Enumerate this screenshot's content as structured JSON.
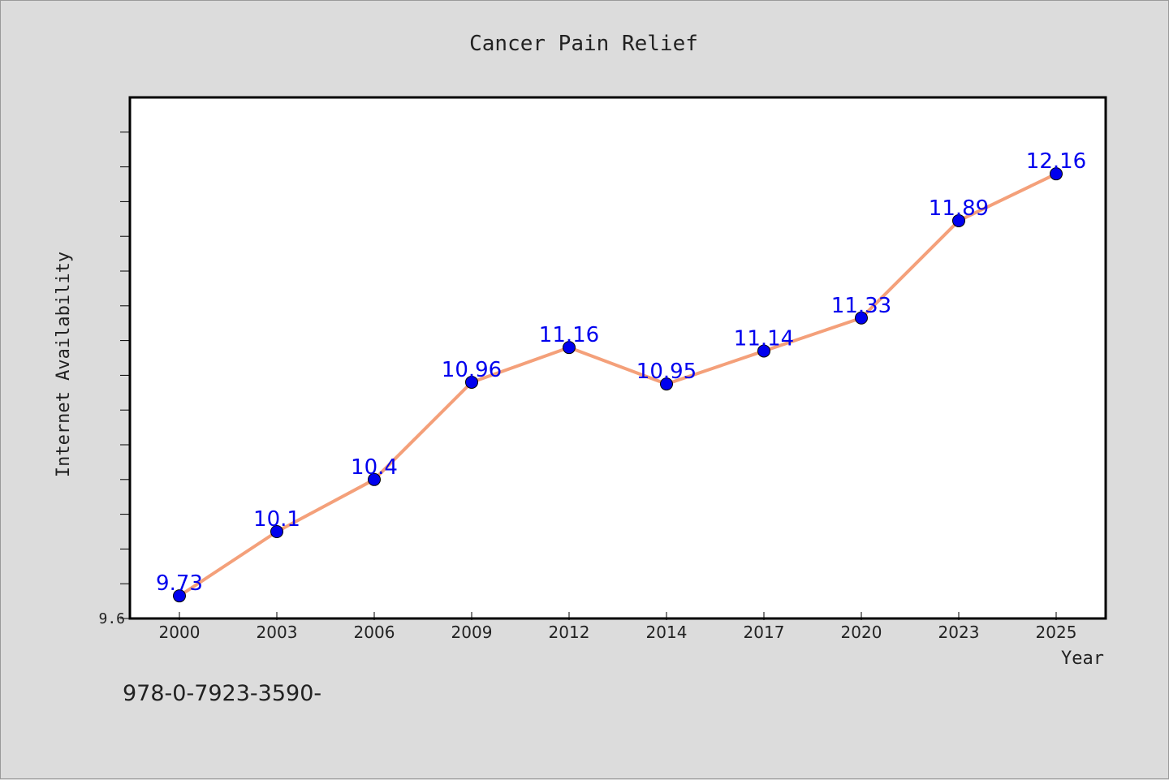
{
  "chart_data": {
    "type": "line",
    "title": "Cancer Pain Relief",
    "xlabel": "Year",
    "ylabel": "Internet Availability",
    "categories": [
      "2000",
      "2003",
      "2006",
      "2009",
      "2012",
      "2014",
      "2017",
      "2020",
      "2023",
      "2025"
    ],
    "series": [
      {
        "values": [
          9.73,
          10.1,
          10.4,
          10.96,
          11.16,
          10.95,
          11.14,
          11.33,
          11.89,
          12.16
        ],
        "labels": [
          "9.73",
          "10.1",
          "10.4",
          "10.96",
          "11.16",
          "10.95",
          "11.14",
          "11.33",
          "11.89",
          "12.16"
        ],
        "line_color": "#f4a07a",
        "marker_color": "#0000ee",
        "label_color": "#0000ee"
      }
    ],
    "y_tick_labels": [
      "9.6"
    ],
    "ylim": [
      9.6,
      12.6
    ],
    "grid": false,
    "legend": "none",
    "annotation": "978-0-7923-3590-",
    "colors": {
      "page_background": "#dcdcdc",
      "plot_background": "#ffffff",
      "axis": "#000000",
      "text": "#222222"
    }
  }
}
